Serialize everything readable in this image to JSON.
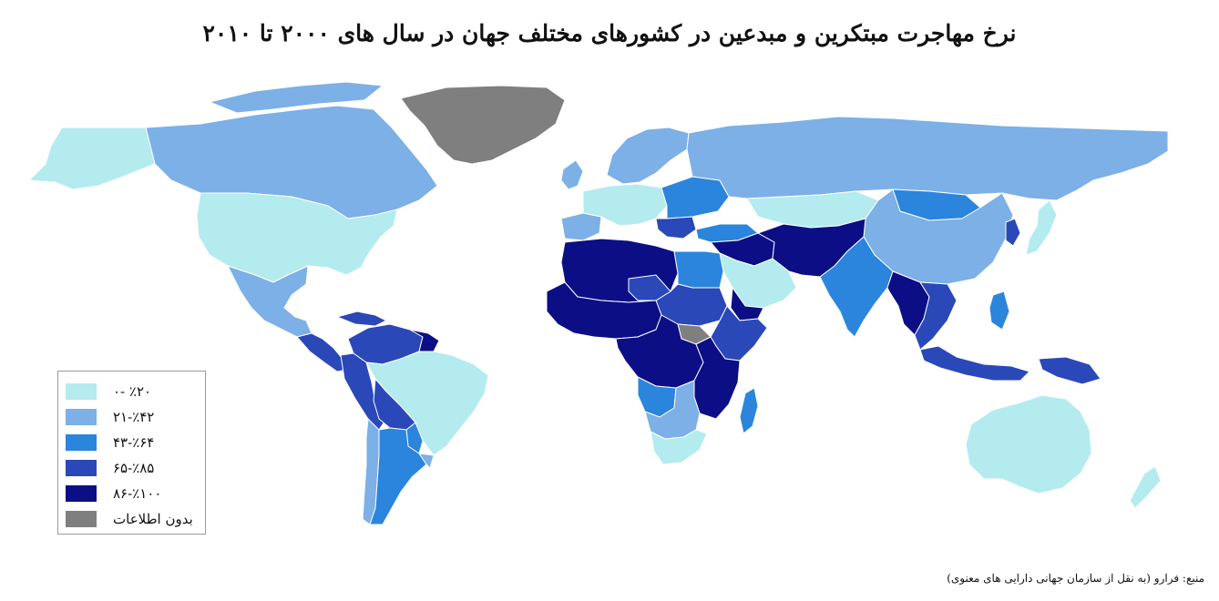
{
  "title": "نرخ مهاجرت مبتکرین و مبدعین در کشورهای مختلف جهان در سال های ۲۰۰۰ تا ۲۰۱۰",
  "source": "منبع: فرارو (به نقل از سازمان جهانی دارایی های معنوی)",
  "colors": {
    "water": "#ffffff",
    "border": "#ffffff"
  },
  "legend": [
    {
      "label": "۰- ٪۲۰",
      "color": "#b4ebef"
    },
    {
      "label": "۲۱-٪۴۲",
      "color": "#7cb0e6"
    },
    {
      "label": "۴۳-٪۶۴",
      "color": "#2b85dc"
    },
    {
      "label": "۶۵-٪۸۵",
      "color": "#2a48b8"
    },
    {
      "label": "۸۶-٪۱۰۰",
      "color": "#0b0e84"
    },
    {
      "label": "بدون اطلاعات",
      "color": "#7f7f7f"
    }
  ],
  "regions": [
    {
      "name": "north-america",
      "class": 0
    },
    {
      "name": "canada",
      "class": 1
    },
    {
      "name": "alaska",
      "class": 0
    },
    {
      "name": "greenland",
      "class": 5
    },
    {
      "name": "mexico",
      "class": 1
    },
    {
      "name": "central-america",
      "class": 3
    },
    {
      "name": "caribbean",
      "class": 3
    },
    {
      "name": "colombia-venezuela",
      "class": 3
    },
    {
      "name": "guyana",
      "class": 4
    },
    {
      "name": "brazil",
      "class": 0
    },
    {
      "name": "peru-ecuador",
      "class": 3
    },
    {
      "name": "bolivia",
      "class": 3
    },
    {
      "name": "paraguay",
      "class": 2
    },
    {
      "name": "argentina",
      "class": 2
    },
    {
      "name": "chile",
      "class": 1
    },
    {
      "name": "uruguay",
      "class": 1
    },
    {
      "name": "europe-west",
      "class": 0
    },
    {
      "name": "scandinavia",
      "class": 1
    },
    {
      "name": "uk-ireland",
      "class": 1
    },
    {
      "name": "iberia",
      "class": 1
    },
    {
      "name": "eastern-europe",
      "class": 2
    },
    {
      "name": "balkans",
      "class": 3
    },
    {
      "name": "russia",
      "class": 1
    },
    {
      "name": "kazakhstan",
      "class": 0
    },
    {
      "name": "mongolia",
      "class": 2
    },
    {
      "name": "china",
      "class": 1
    },
    {
      "name": "korea",
      "class": 3
    },
    {
      "name": "japan",
      "class": 0
    },
    {
      "name": "turkey",
      "class": 2
    },
    {
      "name": "middle-east",
      "class": 4
    },
    {
      "name": "arabia",
      "class": 0
    },
    {
      "name": "yemen",
      "class": 4
    },
    {
      "name": "iran-afghanistan",
      "class": 4
    },
    {
      "name": "india",
      "class": 2
    },
    {
      "name": "southeast-asia",
      "class": 3
    },
    {
      "name": "myanmar-laos",
      "class": 4
    },
    {
      "name": "indonesia",
      "class": 3
    },
    {
      "name": "philippines",
      "class": 2
    },
    {
      "name": "new-guinea",
      "class": 3
    },
    {
      "name": "north-africa",
      "class": 4
    },
    {
      "name": "egypt",
      "class": 2
    },
    {
      "name": "west-africa",
      "class": 4
    },
    {
      "name": "sahel",
      "class": 3
    },
    {
      "name": "central-africa",
      "class": 4
    },
    {
      "name": "sudan-region",
      "class": 3
    },
    {
      "name": "south-sudan",
      "class": 5
    },
    {
      "name": "horn-of-africa",
      "class": 3
    },
    {
      "name": "east-africa",
      "class": 4
    },
    {
      "name": "angola",
      "class": 2
    },
    {
      "name": "southern-africa",
      "class": 1
    },
    {
      "name": "south-africa",
      "class": 0
    },
    {
      "name": "madagascar",
      "class": 2
    },
    {
      "name": "australia",
      "class": 0
    },
    {
      "name": "new-zealand",
      "class": 0
    }
  ]
}
